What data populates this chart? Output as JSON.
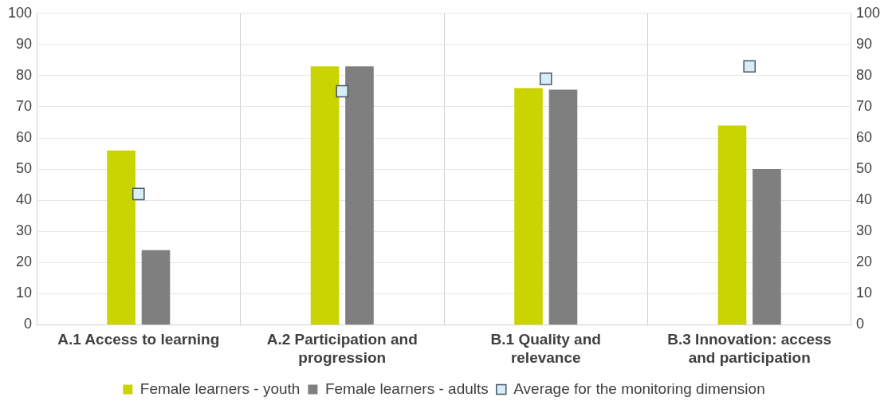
{
  "chart_data": {
    "type": "bar",
    "categories": [
      "A.1 Access to learning",
      "A.2 Participation and progression",
      "B.1 Quality and relevance",
      "B.3 Innovation: access and participation"
    ],
    "series": [
      {
        "name": "Female learners - youth",
        "color": "#c9d400",
        "values": [
          56,
          83,
          76,
          64
        ]
      },
      {
        "name": "Female learners - adults",
        "color": "#7f7f7f",
        "values": [
          24,
          83,
          75.5,
          50
        ]
      },
      {
        "name": "Average for the monitoring dimension",
        "type": "scatter",
        "marker": "square",
        "color": "#d6eef5",
        "values": [
          42,
          75,
          79,
          83
        ]
      }
    ],
    "ylim": [
      0,
      100
    ],
    "yticks": [
      0,
      10,
      20,
      30,
      40,
      50,
      60,
      70,
      80,
      90,
      100
    ],
    "y2lim": [
      0,
      100
    ],
    "y2ticks": [
      0,
      10,
      20,
      30,
      40,
      50,
      60,
      70,
      80,
      90,
      100
    ],
    "grid": true,
    "legend": "bottom"
  }
}
